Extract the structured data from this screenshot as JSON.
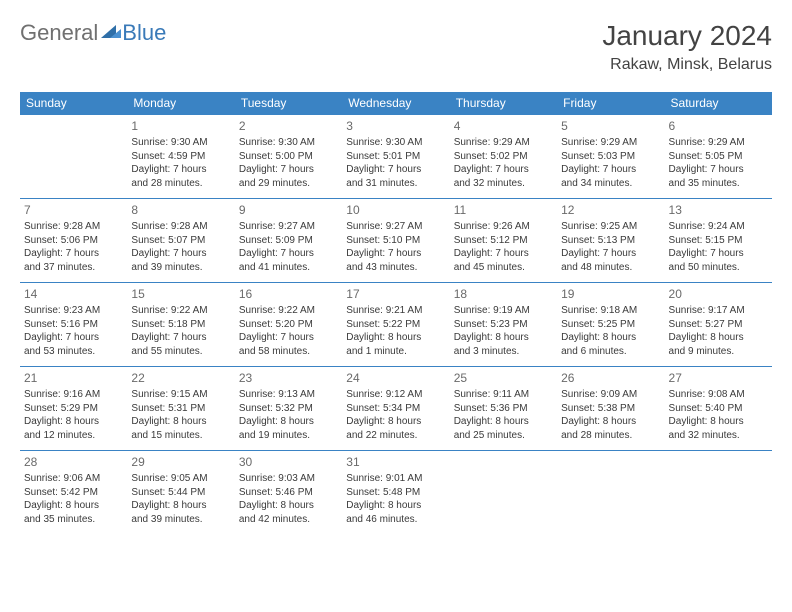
{
  "logo": {
    "text1": "General",
    "text2": "Blue"
  },
  "title": "January 2024",
  "location": "Rakaw, Minsk, Belarus",
  "colors": {
    "header_bg": "#3a83c4",
    "header_text": "#ffffff",
    "rule": "#3a83c4"
  },
  "dayHeaders": [
    "Sunday",
    "Monday",
    "Tuesday",
    "Wednesday",
    "Thursday",
    "Friday",
    "Saturday"
  ],
  "weeks": [
    [
      null,
      {
        "n": "1",
        "sr": "Sunrise: 9:30 AM",
        "ss": "Sunset: 4:59 PM",
        "d1": "Daylight: 7 hours",
        "d2": "and 28 minutes."
      },
      {
        "n": "2",
        "sr": "Sunrise: 9:30 AM",
        "ss": "Sunset: 5:00 PM",
        "d1": "Daylight: 7 hours",
        "d2": "and 29 minutes."
      },
      {
        "n": "3",
        "sr": "Sunrise: 9:30 AM",
        "ss": "Sunset: 5:01 PM",
        "d1": "Daylight: 7 hours",
        "d2": "and 31 minutes."
      },
      {
        "n": "4",
        "sr": "Sunrise: 9:29 AM",
        "ss": "Sunset: 5:02 PM",
        "d1": "Daylight: 7 hours",
        "d2": "and 32 minutes."
      },
      {
        "n": "5",
        "sr": "Sunrise: 9:29 AM",
        "ss": "Sunset: 5:03 PM",
        "d1": "Daylight: 7 hours",
        "d2": "and 34 minutes."
      },
      {
        "n": "6",
        "sr": "Sunrise: 9:29 AM",
        "ss": "Sunset: 5:05 PM",
        "d1": "Daylight: 7 hours",
        "d2": "and 35 minutes."
      }
    ],
    [
      {
        "n": "7",
        "sr": "Sunrise: 9:28 AM",
        "ss": "Sunset: 5:06 PM",
        "d1": "Daylight: 7 hours",
        "d2": "and 37 minutes."
      },
      {
        "n": "8",
        "sr": "Sunrise: 9:28 AM",
        "ss": "Sunset: 5:07 PM",
        "d1": "Daylight: 7 hours",
        "d2": "and 39 minutes."
      },
      {
        "n": "9",
        "sr": "Sunrise: 9:27 AM",
        "ss": "Sunset: 5:09 PM",
        "d1": "Daylight: 7 hours",
        "d2": "and 41 minutes."
      },
      {
        "n": "10",
        "sr": "Sunrise: 9:27 AM",
        "ss": "Sunset: 5:10 PM",
        "d1": "Daylight: 7 hours",
        "d2": "and 43 minutes."
      },
      {
        "n": "11",
        "sr": "Sunrise: 9:26 AM",
        "ss": "Sunset: 5:12 PM",
        "d1": "Daylight: 7 hours",
        "d2": "and 45 minutes."
      },
      {
        "n": "12",
        "sr": "Sunrise: 9:25 AM",
        "ss": "Sunset: 5:13 PM",
        "d1": "Daylight: 7 hours",
        "d2": "and 48 minutes."
      },
      {
        "n": "13",
        "sr": "Sunrise: 9:24 AM",
        "ss": "Sunset: 5:15 PM",
        "d1": "Daylight: 7 hours",
        "d2": "and 50 minutes."
      }
    ],
    [
      {
        "n": "14",
        "sr": "Sunrise: 9:23 AM",
        "ss": "Sunset: 5:16 PM",
        "d1": "Daylight: 7 hours",
        "d2": "and 53 minutes."
      },
      {
        "n": "15",
        "sr": "Sunrise: 9:22 AM",
        "ss": "Sunset: 5:18 PM",
        "d1": "Daylight: 7 hours",
        "d2": "and 55 minutes."
      },
      {
        "n": "16",
        "sr": "Sunrise: 9:22 AM",
        "ss": "Sunset: 5:20 PM",
        "d1": "Daylight: 7 hours",
        "d2": "and 58 minutes."
      },
      {
        "n": "17",
        "sr": "Sunrise: 9:21 AM",
        "ss": "Sunset: 5:22 PM",
        "d1": "Daylight: 8 hours",
        "d2": "and 1 minute."
      },
      {
        "n": "18",
        "sr": "Sunrise: 9:19 AM",
        "ss": "Sunset: 5:23 PM",
        "d1": "Daylight: 8 hours",
        "d2": "and 3 minutes."
      },
      {
        "n": "19",
        "sr": "Sunrise: 9:18 AM",
        "ss": "Sunset: 5:25 PM",
        "d1": "Daylight: 8 hours",
        "d2": "and 6 minutes."
      },
      {
        "n": "20",
        "sr": "Sunrise: 9:17 AM",
        "ss": "Sunset: 5:27 PM",
        "d1": "Daylight: 8 hours",
        "d2": "and 9 minutes."
      }
    ],
    [
      {
        "n": "21",
        "sr": "Sunrise: 9:16 AM",
        "ss": "Sunset: 5:29 PM",
        "d1": "Daylight: 8 hours",
        "d2": "and 12 minutes."
      },
      {
        "n": "22",
        "sr": "Sunrise: 9:15 AM",
        "ss": "Sunset: 5:31 PM",
        "d1": "Daylight: 8 hours",
        "d2": "and 15 minutes."
      },
      {
        "n": "23",
        "sr": "Sunrise: 9:13 AM",
        "ss": "Sunset: 5:32 PM",
        "d1": "Daylight: 8 hours",
        "d2": "and 19 minutes."
      },
      {
        "n": "24",
        "sr": "Sunrise: 9:12 AM",
        "ss": "Sunset: 5:34 PM",
        "d1": "Daylight: 8 hours",
        "d2": "and 22 minutes."
      },
      {
        "n": "25",
        "sr": "Sunrise: 9:11 AM",
        "ss": "Sunset: 5:36 PM",
        "d1": "Daylight: 8 hours",
        "d2": "and 25 minutes."
      },
      {
        "n": "26",
        "sr": "Sunrise: 9:09 AM",
        "ss": "Sunset: 5:38 PM",
        "d1": "Daylight: 8 hours",
        "d2": "and 28 minutes."
      },
      {
        "n": "27",
        "sr": "Sunrise: 9:08 AM",
        "ss": "Sunset: 5:40 PM",
        "d1": "Daylight: 8 hours",
        "d2": "and 32 minutes."
      }
    ],
    [
      {
        "n": "28",
        "sr": "Sunrise: 9:06 AM",
        "ss": "Sunset: 5:42 PM",
        "d1": "Daylight: 8 hours",
        "d2": "and 35 minutes."
      },
      {
        "n": "29",
        "sr": "Sunrise: 9:05 AM",
        "ss": "Sunset: 5:44 PM",
        "d1": "Daylight: 8 hours",
        "d2": "and 39 minutes."
      },
      {
        "n": "30",
        "sr": "Sunrise: 9:03 AM",
        "ss": "Sunset: 5:46 PM",
        "d1": "Daylight: 8 hours",
        "d2": "and 42 minutes."
      },
      {
        "n": "31",
        "sr": "Sunrise: 9:01 AM",
        "ss": "Sunset: 5:48 PM",
        "d1": "Daylight: 8 hours",
        "d2": "and 46 minutes."
      },
      null,
      null,
      null
    ]
  ]
}
